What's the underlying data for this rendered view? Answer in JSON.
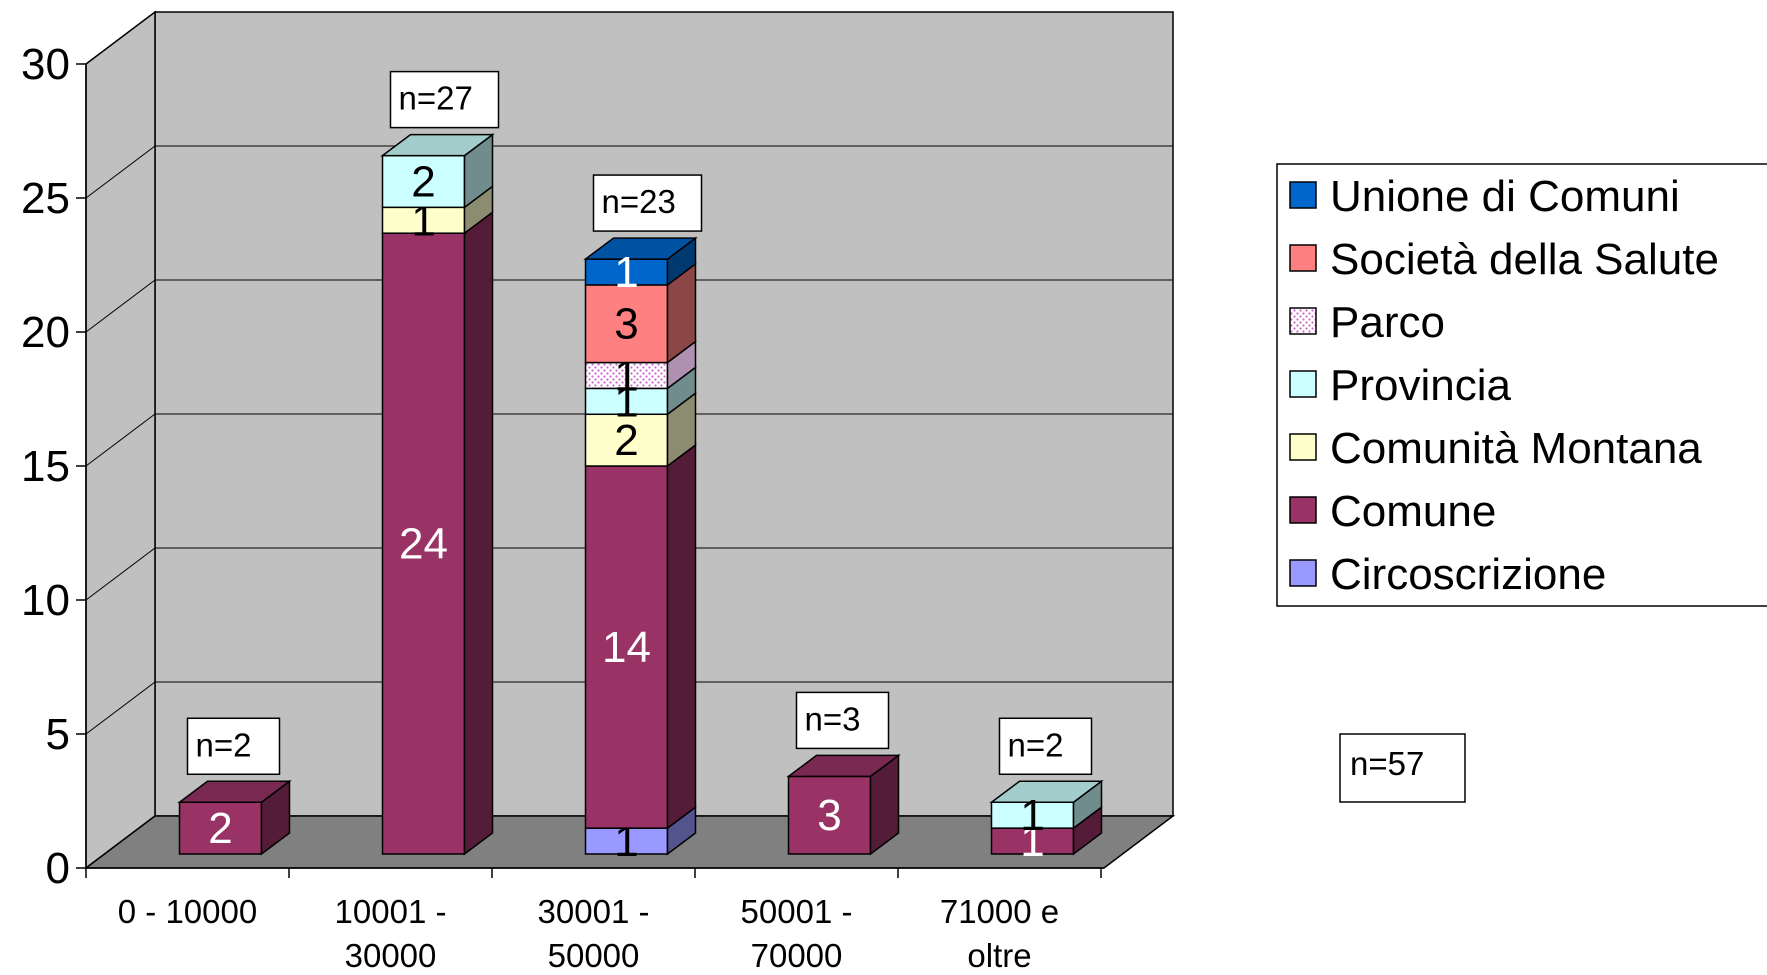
{
  "chart_data": {
    "type": "bar",
    "stacked": true,
    "three_d": true,
    "categories": [
      "0 - 10000",
      "10001 - 30000",
      "30001 - 50000",
      "50001 - 70000",
      "71000 e oltre"
    ],
    "category_lines": [
      [
        "0 - 10000"
      ],
      [
        "10001 -",
        "30000"
      ],
      [
        "30001 -",
        "50000"
      ],
      [
        "50001 -",
        "70000"
      ],
      [
        "71000 e",
        "oltre"
      ]
    ],
    "ylim": [
      0,
      30
    ],
    "yticks": [
      "0",
      "5",
      "10",
      "15",
      "20",
      "25",
      "30"
    ],
    "grid": true,
    "legend_position": "right",
    "series": [
      {
        "name": "Circoscrizione",
        "color": "#9999ff",
        "values": [
          0,
          0,
          1,
          0,
          0
        ]
      },
      {
        "name": "Comune",
        "color": "#993366",
        "values": [
          2,
          24,
          14,
          3,
          1
        ]
      },
      {
        "name": "Comunità Montana",
        "color": "#ffffcc",
        "values": [
          0,
          1,
          2,
          0,
          0
        ]
      },
      {
        "name": "Provincia",
        "color": "#ccffff",
        "values": [
          0,
          2,
          1,
          0,
          1
        ]
      },
      {
        "name": "Parco",
        "color": "#ffccff",
        "pattern": "dotted",
        "values": [
          0,
          0,
          1,
          0,
          0
        ]
      },
      {
        "name": "Società della Salute",
        "color": "#ff8080",
        "values": [
          0,
          0,
          3,
          0,
          0
        ]
      },
      {
        "name": "Unione di Comuni",
        "color": "#0066cc",
        "values": [
          0,
          0,
          1,
          0,
          0
        ]
      }
    ],
    "data_labels": [
      [
        "",
        "2",
        "",
        "",
        "",
        "",
        ""
      ],
      [
        "",
        "24",
        "1",
        "2",
        "",
        "",
        ""
      ],
      [
        "1",
        "14",
        "2",
        "1",
        "1",
        "3",
        "1"
      ],
      [
        "",
        "3",
        "",
        "",
        "",
        "",
        ""
      ],
      [
        "",
        "1",
        "",
        "1",
        "",
        "",
        ""
      ]
    ],
    "totals_labels": [
      "n=2",
      "n=27",
      "n=23",
      "n=3",
      "n=2"
    ],
    "overall_label": "n=57",
    "legend_order": [
      "Unione di Comuni",
      "Società della Salute",
      "Parco",
      "Provincia",
      "Comunità Montana",
      "Comune",
      "Circoscrizione"
    ]
  }
}
